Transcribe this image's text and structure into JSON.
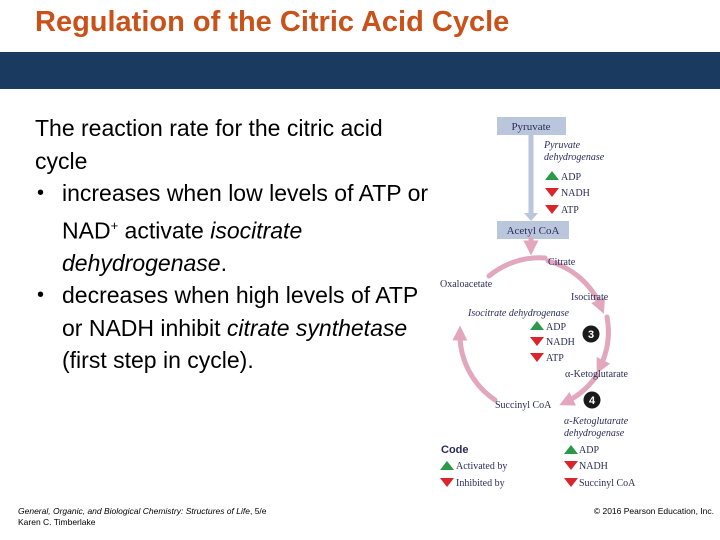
{
  "slide": {
    "title": "Regulation of the Citric Acid Cycle",
    "intro": "The reaction rate for the citric acid cycle",
    "bullet1": {
      "prefix": "increases when low levels of ATP or NAD",
      "sup": "+",
      "middle": " activate ",
      "italic": "isocitrate dehydrogenase",
      "suffix": "."
    },
    "bullet2": {
      "prefix": "decreases when high levels of ATP or NADH inhibit ",
      "italic": "citrate synthetase",
      "suffix": " (first step in cycle)."
    },
    "footer": {
      "book": "General, Organic, and Biological Chemistry: Structures of Life",
      "edition": ", 5/e",
      "author": "Karen C. Timberlake",
      "copyright": "© 2016 Pearson Education, Inc."
    }
  },
  "diagram": {
    "pyruvate": "Pyruvate",
    "pdh_line1": "Pyruvate",
    "pdh_line2": "dehydrogenase",
    "pdh_regulators": [
      {
        "label": "ADP",
        "effect": "activated"
      },
      {
        "label": "NADH",
        "effect": "inhibited"
      },
      {
        "label": "ATP",
        "effect": "inhibited"
      }
    ],
    "acetyl_coa": "Acetyl CoA",
    "citrate": "Citrate",
    "oxaloacetate": "Oxaloacetate",
    "isocitrate": "Isocitrate",
    "isocitrate_dh": "Isocitrate dehydrogenase",
    "icdh_regulators": [
      {
        "label": "ADP",
        "effect": "activated"
      },
      {
        "label": "NADH",
        "effect": "inhibited"
      },
      {
        "label": "ATP",
        "effect": "inhibited"
      }
    ],
    "step3": "3",
    "ketoglutarate": "α-Ketoglutarate",
    "step4": "4",
    "succinyl_coa": "Succinyl CoA",
    "akgdh_line1": "α-Ketoglutarate",
    "akgdh_line2": "dehydrogenase",
    "akgdh_regulators": [
      {
        "label": "ADP",
        "effect": "activated"
      },
      {
        "label": "NADH",
        "effect": "inhibited"
      },
      {
        "label": "Succinyl CoA",
        "effect": "inhibited"
      }
    ],
    "legend": {
      "title": "Code",
      "activated": "Activated by",
      "inhibited": "Inhibited by"
    },
    "colors": {
      "activated": "#2a9a4a",
      "inhibited": "#d9262c",
      "pathway": "#e2a6bd",
      "box_fill": "#b9c6dc",
      "text": "#2a2d5a"
    }
  }
}
